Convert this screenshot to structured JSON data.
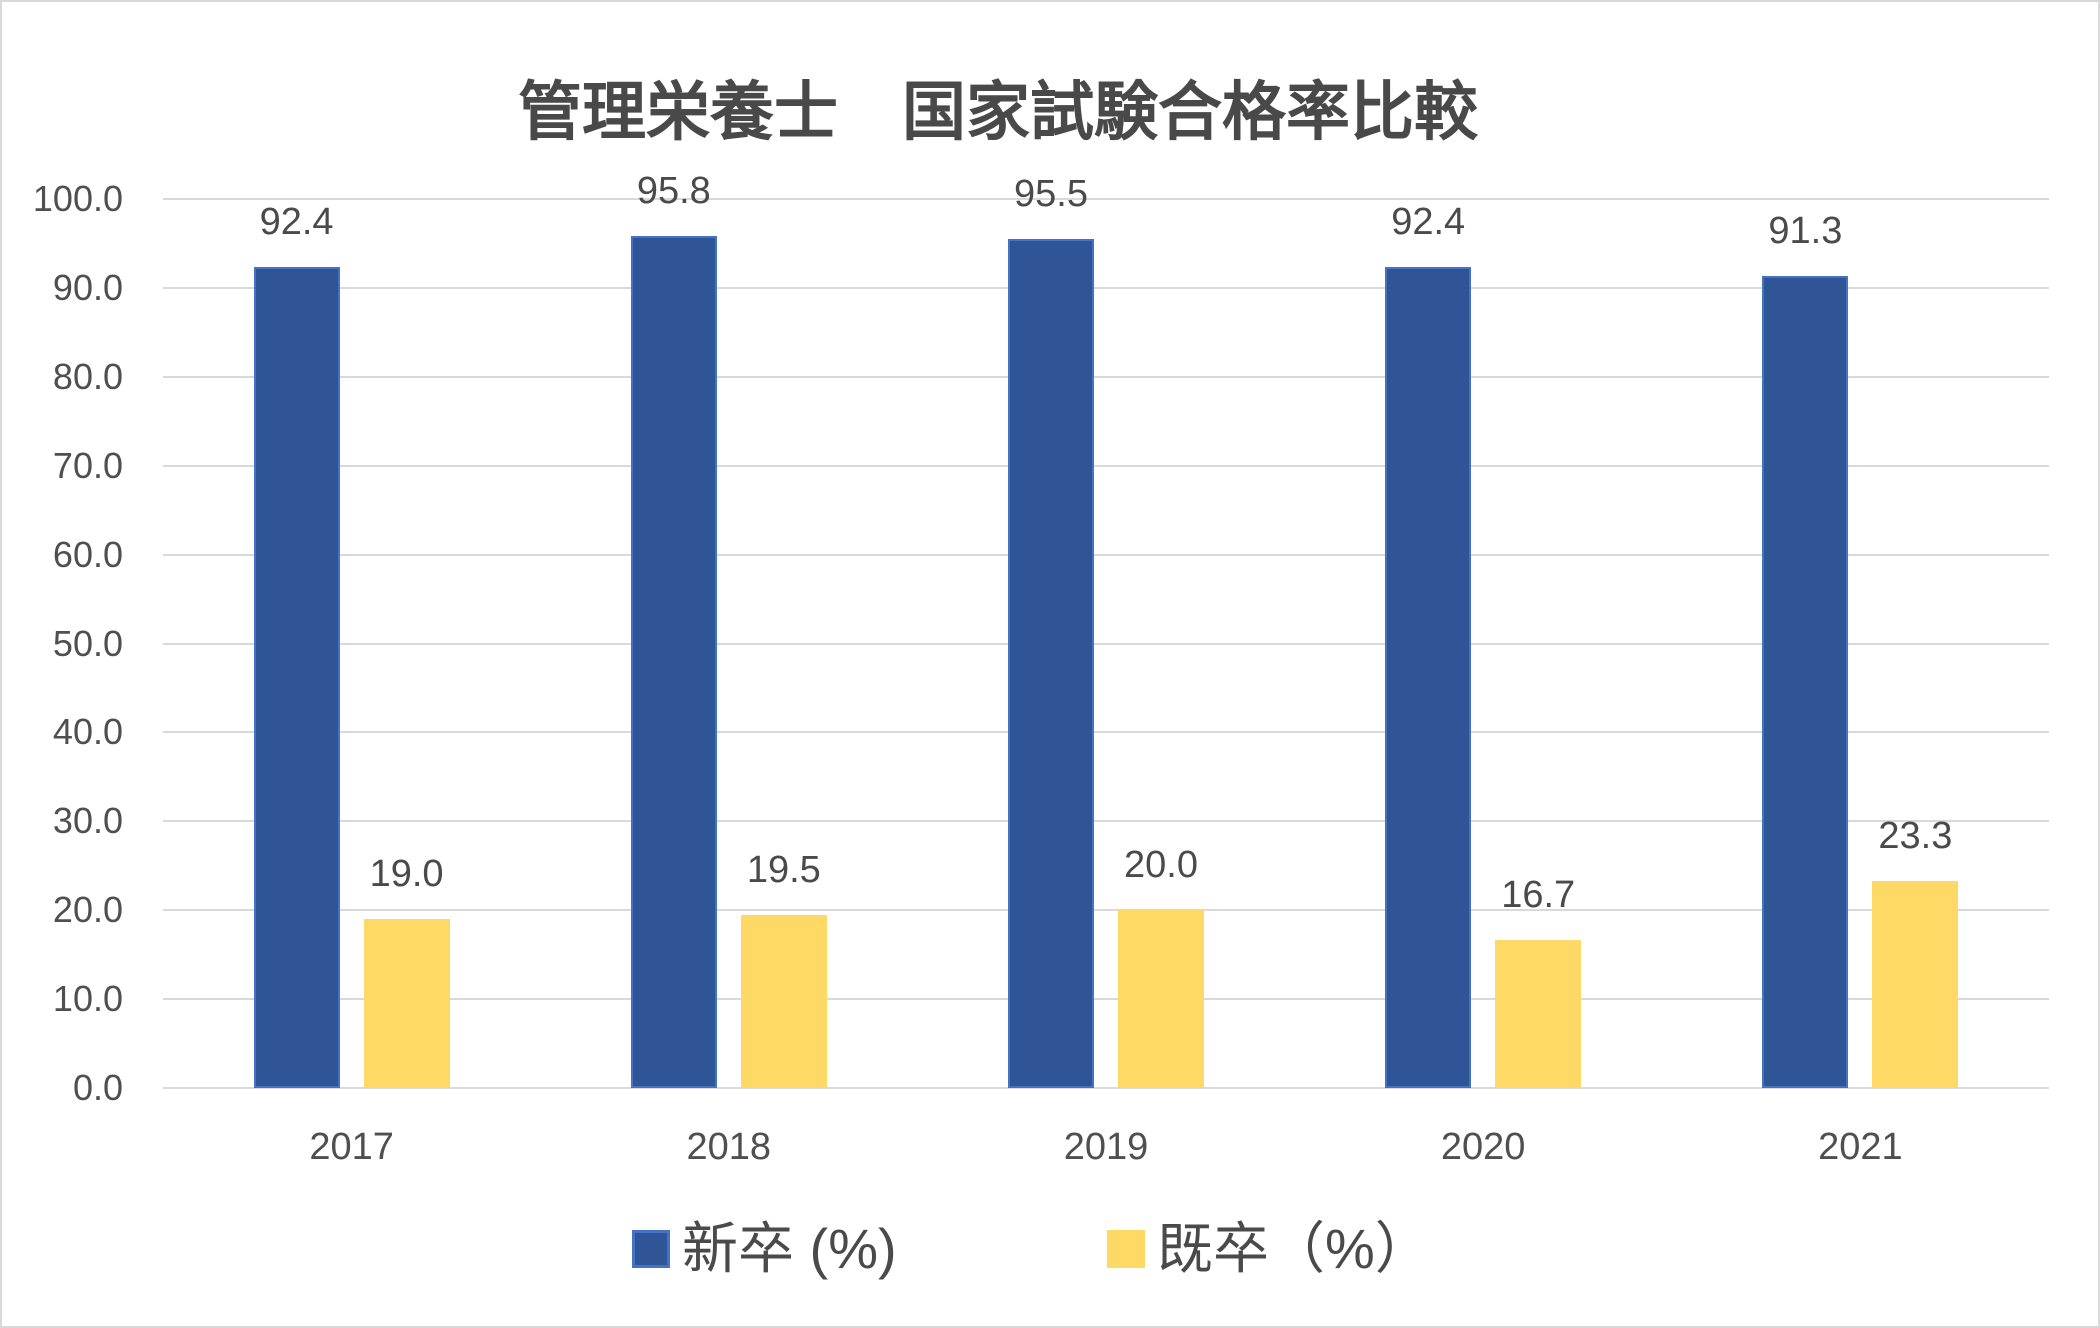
{
  "chart_data": {
    "type": "bar",
    "title": "管理栄養士　国家試験合格率比較",
    "categories": [
      "2017",
      "2018",
      "2019",
      "2020",
      "2021"
    ],
    "series": [
      {
        "name": "新卒 (%)",
        "values": [
          92.4,
          95.8,
          95.5,
          92.4,
          91.3
        ],
        "labels": [
          "92.4",
          "95.8",
          "95.5",
          "92.4",
          "91.3"
        ],
        "color": "#2F5597",
        "border_color": "#4472C4"
      },
      {
        "name": "既卒（%）",
        "values": [
          19.0,
          19.5,
          20.0,
          16.7,
          23.3
        ],
        "labels": [
          "19.0",
          "19.5",
          "20.0",
          "16.7",
          "23.3"
        ],
        "color": "#FFD966",
        "border_color": "#FFD966"
      }
    ],
    "ylim": [
      0,
      100
    ],
    "ytick_step": 10,
    "ytick_labels": [
      "100.0",
      "90.0",
      "80.0",
      "70.0",
      "60.0",
      "50.0",
      "40.0",
      "30.0",
      "20.0",
      "10.0",
      "0.0"
    ],
    "grid": true,
    "legend_position": "bottom",
    "gridline_color": "#D9D9D9",
    "text_color": "#4f4f4f",
    "background": "#FFFFFF",
    "border_color": "#D9D9D9"
  }
}
